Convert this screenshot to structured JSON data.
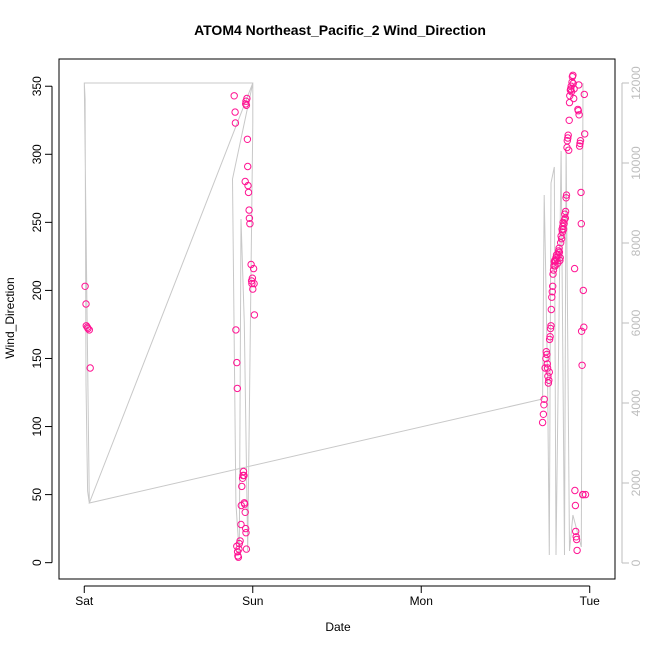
{
  "chart_data": {
    "type": "scatter",
    "title": "ATOM4 Northeast_Pacific_2 Wind_Direction",
    "xlabel": "Date",
    "ylabel": "Wind_Direction",
    "x_ticks": [
      "Sat",
      "Sun",
      "Mon",
      "Tue"
    ],
    "x_unit": "days since Sat 00:00",
    "xlim": [
      -0.15,
      3.15
    ],
    "ylim": [
      -12,
      370
    ],
    "y_ticks": [
      0,
      50,
      100,
      150,
      200,
      250,
      300,
      350
    ],
    "y2lim": [
      -400,
      12600
    ],
    "y2_ticks": [
      0,
      2000,
      4000,
      6000,
      8000,
      10000,
      12000
    ],
    "grid": false,
    "point_color": "#ff1493",
    "line_color": "#c8c8c8",
    "right_axis_color": "#bdbdbd",
    "series": [
      {
        "kind": "points",
        "points": [
          [
            0.005,
            203
          ],
          [
            0.01,
            190
          ],
          [
            0.012,
            174
          ],
          [
            0.018,
            173
          ],
          [
            0.022,
            172
          ],
          [
            0.03,
            171
          ],
          [
            0.035,
            143
          ],
          [
            0.89,
            343
          ],
          [
            0.895,
            331
          ],
          [
            0.897,
            323
          ],
          [
            0.9,
            171
          ],
          [
            0.905,
            147
          ],
          [
            0.908,
            128
          ],
          [
            0.905,
            12
          ],
          [
            0.91,
            8
          ],
          [
            0.912,
            5
          ],
          [
            0.915,
            4
          ],
          [
            0.918,
            10
          ],
          [
            0.92,
            14
          ],
          [
            0.925,
            16
          ],
          [
            0.93,
            28
          ],
          [
            0.932,
            42
          ],
          [
            0.935,
            56
          ],
          [
            0.94,
            62
          ],
          [
            0.942,
            64
          ],
          [
            0.945,
            67
          ],
          [
            0.948,
            64
          ],
          [
            0.95,
            44
          ],
          [
            0.952,
            43
          ],
          [
            0.955,
            37
          ],
          [
            0.958,
            25
          ],
          [
            0.96,
            22
          ],
          [
            0.962,
            10
          ],
          [
            0.955,
            280
          ],
          [
            0.958,
            337
          ],
          [
            0.96,
            339
          ],
          [
            0.962,
            336
          ],
          [
            0.965,
            341
          ],
          [
            0.968,
            311
          ],
          [
            0.97,
            291
          ],
          [
            0.972,
            277
          ],
          [
            0.975,
            272
          ],
          [
            0.978,
            259
          ],
          [
            0.98,
            253
          ],
          [
            0.983,
            249
          ],
          [
            0.99,
            219
          ],
          [
            0.993,
            207
          ],
          [
            0.995,
            205
          ],
          [
            0.998,
            209
          ],
          [
            1.0,
            201
          ],
          [
            1.005,
            216
          ],
          [
            1.01,
            182
          ],
          [
            1.008,
            205
          ]
        ]
      },
      {
        "kind": "points",
        "points": [
          [
            2.72,
            103
          ],
          [
            2.725,
            109
          ],
          [
            2.728,
            116
          ],
          [
            2.73,
            120
          ],
          [
            2.735,
            143
          ],
          [
            2.74,
            150
          ],
          [
            2.742,
            155
          ],
          [
            2.745,
            153
          ],
          [
            2.748,
            146
          ],
          [
            2.75,
            143
          ],
          [
            2.752,
            137
          ],
          [
            2.755,
            132
          ],
          [
            2.757,
            134
          ],
          [
            2.76,
            140
          ],
          [
            2.762,
            164
          ],
          [
            2.765,
            166
          ],
          [
            2.767,
            172
          ],
          [
            2.77,
            174
          ],
          [
            2.772,
            186
          ],
          [
            2.775,
            195
          ],
          [
            2.778,
            199
          ],
          [
            2.78,
            203
          ],
          [
            2.782,
            212
          ],
          [
            2.785,
            215
          ],
          [
            2.788,
            218
          ],
          [
            2.79,
            221
          ],
          [
            2.792,
            222
          ],
          [
            2.795,
            218
          ],
          [
            2.798,
            222
          ],
          [
            2.8,
            224
          ],
          [
            2.803,
            226
          ],
          [
            2.806,
            223
          ],
          [
            2.81,
            220
          ],
          [
            2.812,
            226
          ],
          [
            2.815,
            229
          ],
          [
            2.818,
            231
          ],
          [
            2.82,
            228
          ],
          [
            2.823,
            222
          ],
          [
            2.825,
            224
          ],
          [
            2.828,
            235
          ],
          [
            2.83,
            240
          ],
          [
            2.833,
            238
          ],
          [
            2.836,
            245
          ],
          [
            2.838,
            243
          ],
          [
            2.84,
            247
          ],
          [
            2.842,
            250
          ],
          [
            2.845,
            245
          ],
          [
            2.848,
            249
          ],
          [
            2.85,
            252
          ],
          [
            2.852,
            256
          ],
          [
            2.855,
            253
          ],
          [
            2.857,
            258
          ],
          [
            2.86,
            268
          ],
          [
            2.862,
            270
          ],
          [
            2.865,
            305
          ],
          [
            2.867,
            310
          ],
          [
            2.87,
            312
          ],
          [
            2.872,
            314
          ],
          [
            2.875,
            303
          ],
          [
            2.878,
            325
          ],
          [
            2.88,
            338
          ],
          [
            2.882,
            343
          ],
          [
            2.885,
            347
          ],
          [
            2.887,
            348
          ],
          [
            2.89,
            350
          ],
          [
            2.892,
            346
          ],
          [
            2.895,
            353
          ],
          [
            2.897,
            357
          ],
          [
            2.9,
            358
          ],
          [
            2.902,
            352
          ],
          [
            2.905,
            341
          ],
          [
            2.907,
            348
          ],
          [
            2.91,
            216
          ],
          [
            2.912,
            53
          ],
          [
            2.915,
            42
          ],
          [
            2.917,
            23
          ],
          [
            2.92,
            19
          ],
          [
            2.922,
            17
          ],
          [
            2.925,
            9
          ],
          [
            2.93,
            333
          ],
          [
            2.932,
            332
          ],
          [
            2.935,
            351
          ],
          [
            2.937,
            329
          ],
          [
            2.94,
            306
          ],
          [
            2.942,
            308
          ],
          [
            2.945,
            310
          ],
          [
            2.948,
            272
          ],
          [
            2.95,
            249
          ],
          [
            2.952,
            170
          ],
          [
            2.955,
            145
          ],
          [
            2.958,
            50
          ],
          [
            2.96,
            50
          ],
          [
            2.962,
            200
          ],
          [
            2.965,
            173
          ],
          [
            2.968,
            344
          ],
          [
            2.97,
            315
          ],
          [
            2.975,
            50
          ]
        ]
      },
      {
        "kind": "line",
        "axis": "right",
        "points": [
          [
            0.0,
            12000
          ],
          [
            0.005,
            11600
          ],
          [
            0.01,
            4500
          ],
          [
            0.02,
            1800
          ],
          [
            0.03,
            1500
          ],
          [
            0.0,
            12000
          ],
          [
            1.0,
            12000
          ],
          [
            0.88,
            9600
          ],
          [
            0.9,
            1500
          ],
          [
            0.92,
            200
          ],
          [
            0.93,
            8600
          ],
          [
            0.95,
            6000
          ],
          [
            0.97,
            300
          ],
          [
            1.0,
            11000
          ],
          [
            1.0,
            12000
          ],
          [
            0.03,
            1500
          ],
          [
            2.72,
            4100
          ],
          [
            2.73,
            9200
          ],
          [
            2.74,
            7000
          ],
          [
            2.75,
            4500
          ],
          [
            2.76,
            200
          ],
          [
            2.77,
            9500
          ],
          [
            2.79,
            9900
          ],
          [
            2.8,
            200
          ],
          [
            2.83,
            10300
          ],
          [
            2.85,
            200
          ],
          [
            2.86,
            10400
          ],
          [
            2.88,
            300
          ],
          [
            2.9,
            1200
          ],
          [
            2.95,
            400
          ],
          [
            2.96,
            12000
          ]
        ]
      }
    ]
  }
}
